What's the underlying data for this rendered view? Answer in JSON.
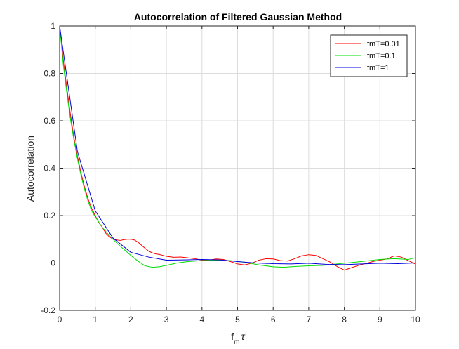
{
  "chart_data": {
    "type": "line",
    "title": "Autocorrelation of Filtered Gaussian Method",
    "xlabel": {
      "base": "f",
      "sub": "m",
      "tail": "τ"
    },
    "ylabel": "Autocorrelation",
    "xlim": [
      0,
      10
    ],
    "ylim": [
      -0.2,
      1
    ],
    "xticks": [
      0,
      1,
      2,
      3,
      4,
      5,
      6,
      7,
      8,
      9,
      10
    ],
    "yticks": [
      -0.2,
      0,
      0.2,
      0.4,
      0.6,
      0.8,
      1
    ],
    "xtick_labels": [
      "0",
      "1",
      "2",
      "3",
      "4",
      "5",
      "6",
      "7",
      "8",
      "9",
      "10"
    ],
    "ytick_labels": [
      "-0.2",
      "0",
      "0.2",
      "0.4",
      "0.6",
      "0.8",
      "1"
    ],
    "grid": true,
    "legend_position": "top-right",
    "series": [
      {
        "name": "fmT=0.01",
        "color": "#ff0000",
        "points": [
          [
            0,
            1
          ],
          [
            0.1,
            0.86
          ],
          [
            0.2,
            0.74
          ],
          [
            0.3,
            0.63
          ],
          [
            0.4,
            0.53
          ],
          [
            0.5,
            0.45
          ],
          [
            0.6,
            0.38
          ],
          [
            0.7,
            0.32
          ],
          [
            0.8,
            0.27
          ],
          [
            0.9,
            0.23
          ],
          [
            1.0,
            0.2
          ],
          [
            1.1,
            0.17
          ],
          [
            1.2,
            0.15
          ],
          [
            1.3,
            0.125
          ],
          [
            1.4,
            0.11
          ],
          [
            1.5,
            0.1
          ],
          [
            1.6,
            0.097
          ],
          [
            1.7,
            0.095
          ],
          [
            1.8,
            0.098
          ],
          [
            1.9,
            0.1
          ],
          [
            2.0,
            0.1
          ],
          [
            2.1,
            0.097
          ],
          [
            2.2,
            0.088
          ],
          [
            2.3,
            0.075
          ],
          [
            2.4,
            0.062
          ],
          [
            2.5,
            0.05
          ],
          [
            2.6,
            0.043
          ],
          [
            2.7,
            0.038
          ],
          [
            2.8,
            0.036
          ],
          [
            2.9,
            0.032
          ],
          [
            3.0,
            0.028
          ],
          [
            3.2,
            0.024
          ],
          [
            3.4,
            0.025
          ],
          [
            3.6,
            0.022
          ],
          [
            3.8,
            0.018
          ],
          [
            4.0,
            0.012
          ],
          [
            4.2,
            0.012
          ],
          [
            4.4,
            0.017
          ],
          [
            4.6,
            0.015
          ],
          [
            4.8,
            0.006
          ],
          [
            5.0,
            -0.004
          ],
          [
            5.2,
            -0.008
          ],
          [
            5.4,
            -0.001
          ],
          [
            5.6,
            0.012
          ],
          [
            5.8,
            0.018
          ],
          [
            6.0,
            0.017
          ],
          [
            6.2,
            0.01
          ],
          [
            6.4,
            0.008
          ],
          [
            6.6,
            0.018
          ],
          [
            6.8,
            0.03
          ],
          [
            7.0,
            0.035
          ],
          [
            7.2,
            0.032
          ],
          [
            7.4,
            0.018
          ],
          [
            7.6,
            0.004
          ],
          [
            7.8,
            -0.015
          ],
          [
            8.0,
            -0.03
          ],
          [
            8.2,
            -0.02
          ],
          [
            8.4,
            -0.01
          ],
          [
            8.6,
            -0.002
          ],
          [
            8.8,
            0.006
          ],
          [
            9.0,
            0.012
          ],
          [
            9.2,
            0.017
          ],
          [
            9.4,
            0.03
          ],
          [
            9.6,
            0.025
          ],
          [
            9.8,
            0.01
          ],
          [
            10.0,
            -0.005
          ]
        ]
      },
      {
        "name": "fmT=0.1",
        "color": "#00dd00",
        "points": [
          [
            0,
            1
          ],
          [
            0.1,
            0.84
          ],
          [
            0.2,
            0.72
          ],
          [
            0.3,
            0.61
          ],
          [
            0.4,
            0.52
          ],
          [
            0.5,
            0.44
          ],
          [
            0.6,
            0.37
          ],
          [
            0.7,
            0.31
          ],
          [
            0.8,
            0.26
          ],
          [
            0.9,
            0.22
          ],
          [
            1.0,
            0.195
          ],
          [
            1.2,
            0.15
          ],
          [
            1.4,
            0.115
          ],
          [
            1.6,
            0.085
          ],
          [
            1.8,
            0.058
          ],
          [
            2.0,
            0.032
          ],
          [
            2.2,
            0.008
          ],
          [
            2.4,
            -0.012
          ],
          [
            2.6,
            -0.018
          ],
          [
            2.8,
            -0.016
          ],
          [
            3.0,
            -0.01
          ],
          [
            3.3,
            0.0
          ],
          [
            3.6,
            0.006
          ],
          [
            4.0,
            0.01
          ],
          [
            4.4,
            0.012
          ],
          [
            4.8,
            0.01
          ],
          [
            5.2,
            0.003
          ],
          [
            5.6,
            -0.008
          ],
          [
            6.0,
            -0.016
          ],
          [
            6.3,
            -0.018
          ],
          [
            6.6,
            -0.015
          ],
          [
            7.0,
            -0.012
          ],
          [
            7.4,
            -0.01
          ],
          [
            7.8,
            -0.004
          ],
          [
            8.2,
            0.002
          ],
          [
            8.6,
            0.008
          ],
          [
            9.0,
            0.015
          ],
          [
            9.4,
            0.018
          ],
          [
            9.8,
            0.015
          ],
          [
            10.0,
            0.022
          ]
        ]
      },
      {
        "name": "fmT=1",
        "color": "#0000dd",
        "points": [
          [
            0,
            1
          ],
          [
            0.5,
            0.47
          ],
          [
            1.0,
            0.22
          ],
          [
            1.5,
            0.105
          ],
          [
            2.0,
            0.045
          ],
          [
            2.5,
            0.025
          ],
          [
            3.0,
            0.012
          ],
          [
            3.5,
            0.013
          ],
          [
            4.0,
            0.015
          ],
          [
            4.5,
            0.013
          ],
          [
            5.0,
            0.006
          ],
          [
            5.5,
            0.0
          ],
          [
            6.0,
            -0.003
          ],
          [
            6.5,
            -0.004
          ],
          [
            7.0,
            -0.001
          ],
          [
            7.5,
            -0.006
          ],
          [
            8.0,
            -0.007
          ],
          [
            8.5,
            -0.004
          ],
          [
            9.0,
            -0.001
          ],
          [
            9.5,
            -0.003
          ],
          [
            10.0,
            0.0
          ]
        ]
      }
    ]
  }
}
